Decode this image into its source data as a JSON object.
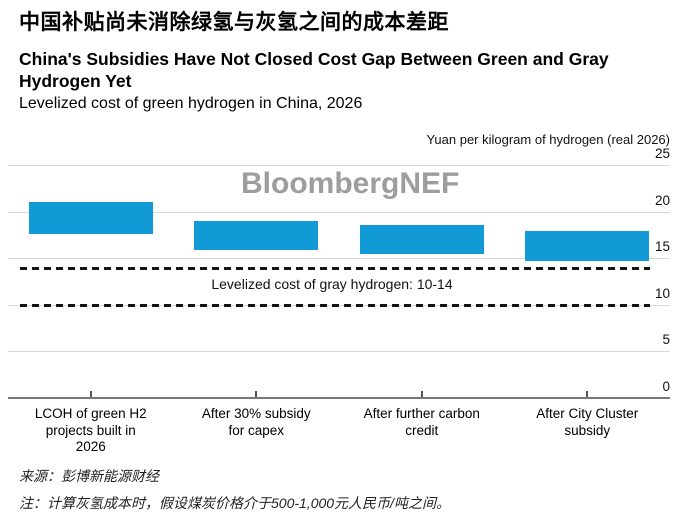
{
  "header": {
    "title_zh": "中国补贴尚未消除绿氢与灰氢之间的成本差距",
    "title_en": "China's Subsidies Have Not Closed Cost Gap Between Green and Gray Hydrogen Yet",
    "subtitle": "Levelized cost of green hydrogen in China, 2026"
  },
  "watermark": "BloombergNEF",
  "chart_data": {
    "type": "bar",
    "subtype": "floating-range-bars",
    "title": "Levelized cost of green hydrogen in China, 2026",
    "unit_label": "Yuan per kilogram of hydrogen (real 2026)",
    "categories": [
      "LCOH of green H2 projects built in 2026",
      "After 30% subsidy for capex",
      "After further carbon credit",
      "After City Cluster subsidy"
    ],
    "category_lines": [
      [
        "LCOH of green H2",
        "projects built in",
        "2026"
      ],
      [
        "After 30% subsidy",
        "for capex"
      ],
      [
        "After further carbon",
        "credit"
      ],
      [
        "After City Cluster",
        "subsidy"
      ]
    ],
    "ranges": [
      [
        17.6,
        21.0
      ],
      [
        15.9,
        19.0
      ],
      [
        15.5,
        18.6
      ],
      [
        14.7,
        17.9
      ]
    ],
    "reference_band": {
      "label": "Levelized cost of gray hydrogen: 10-14",
      "low": 10,
      "high": 14,
      "line_style": "dashed"
    },
    "y_ticks": [
      0,
      5,
      10,
      15,
      20,
      25
    ],
    "ylim": [
      0,
      25
    ],
    "grid": true,
    "legend": "none",
    "bar_color": "#119ad5",
    "dash_color": "#141414",
    "gridline_color": "#d8d8d8",
    "watermark_color": "#9d9d9d"
  },
  "footer": {
    "source": "来源：彭博新能源财经",
    "note": "注：计算灰氢成本时，假设煤炭价格介于500-1,000元人民币/吨之间。"
  }
}
